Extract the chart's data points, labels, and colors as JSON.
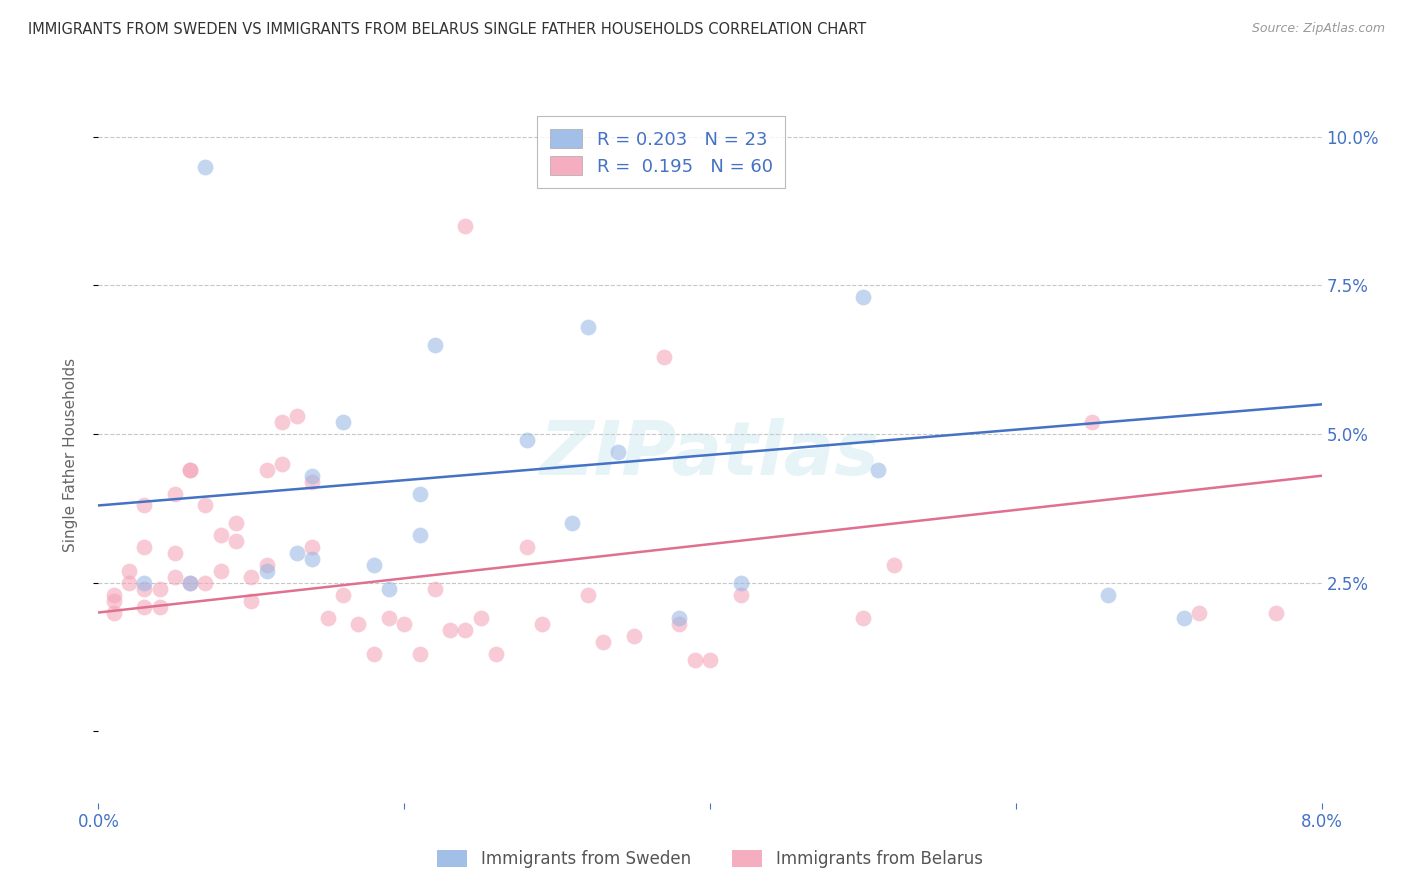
{
  "title": "IMMIGRANTS FROM SWEDEN VS IMMIGRANTS FROM BELARUS SINGLE FATHER HOUSEHOLDS CORRELATION CHART",
  "source": "Source: ZipAtlas.com",
  "ylabel": "Single Father Households",
  "xlim": [
    0.0,
    0.08
  ],
  "ylim": [
    -0.012,
    0.105
  ],
  "sweden_color": "#92b4e3",
  "belarus_color": "#f4a0b5",
  "sweden_line_color": "#4472c4",
  "belarus_line_color": "#e07090",
  "sweden_label": "Immigrants from Sweden",
  "belarus_label": "Immigrants from Belarus",
  "sweden_R": 0.203,
  "sweden_N": 23,
  "belarus_R": 0.195,
  "belarus_N": 60,
  "background_color": "#ffffff",
  "grid_color": "#c8c8c8",
  "watermark": "ZIPatlas",
  "sweden_x": [
    0.003,
    0.006,
    0.007,
    0.011,
    0.013,
    0.014,
    0.014,
    0.016,
    0.018,
    0.019,
    0.021,
    0.021,
    0.022,
    0.028,
    0.031,
    0.032,
    0.034,
    0.038,
    0.042,
    0.05,
    0.051,
    0.066,
    0.071
  ],
  "sweden_y": [
    0.025,
    0.025,
    0.095,
    0.027,
    0.03,
    0.043,
    0.029,
    0.052,
    0.028,
    0.024,
    0.04,
    0.033,
    0.065,
    0.049,
    0.035,
    0.068,
    0.047,
    0.019,
    0.025,
    0.073,
    0.044,
    0.023,
    0.019
  ],
  "belarus_x": [
    0.001,
    0.001,
    0.001,
    0.002,
    0.002,
    0.003,
    0.003,
    0.003,
    0.003,
    0.004,
    0.004,
    0.005,
    0.005,
    0.005,
    0.006,
    0.006,
    0.006,
    0.007,
    0.007,
    0.008,
    0.008,
    0.009,
    0.009,
    0.01,
    0.01,
    0.011,
    0.011,
    0.012,
    0.012,
    0.013,
    0.014,
    0.014,
    0.015,
    0.016,
    0.017,
    0.018,
    0.019,
    0.02,
    0.021,
    0.022,
    0.023,
    0.024,
    0.024,
    0.025,
    0.026,
    0.028,
    0.029,
    0.032,
    0.033,
    0.035,
    0.037,
    0.038,
    0.039,
    0.04,
    0.042,
    0.05,
    0.052,
    0.065,
    0.072,
    0.077
  ],
  "belarus_y": [
    0.023,
    0.022,
    0.02,
    0.025,
    0.027,
    0.021,
    0.024,
    0.031,
    0.038,
    0.024,
    0.021,
    0.026,
    0.03,
    0.04,
    0.025,
    0.044,
    0.044,
    0.025,
    0.038,
    0.027,
    0.033,
    0.032,
    0.035,
    0.022,
    0.026,
    0.028,
    0.044,
    0.045,
    0.052,
    0.053,
    0.031,
    0.042,
    0.019,
    0.023,
    0.018,
    0.013,
    0.019,
    0.018,
    0.013,
    0.024,
    0.017,
    0.017,
    0.085,
    0.019,
    0.013,
    0.031,
    0.018,
    0.023,
    0.015,
    0.016,
    0.063,
    0.018,
    0.012,
    0.012,
    0.023,
    0.019,
    0.028,
    0.052,
    0.02,
    0.02
  ],
  "sweden_line_y0": 0.038,
  "sweden_line_y1": 0.055,
  "belarus_line_y0": 0.02,
  "belarus_line_y1": 0.043,
  "marker_size": 130,
  "marker_alpha": 0.55,
  "legend_box_color": "#ffffff",
  "legend_border_color": "#aaaaaa",
  "title_color": "#333333",
  "tick_label_color": "#4472c4",
  "bottom_label_color": "#555555"
}
